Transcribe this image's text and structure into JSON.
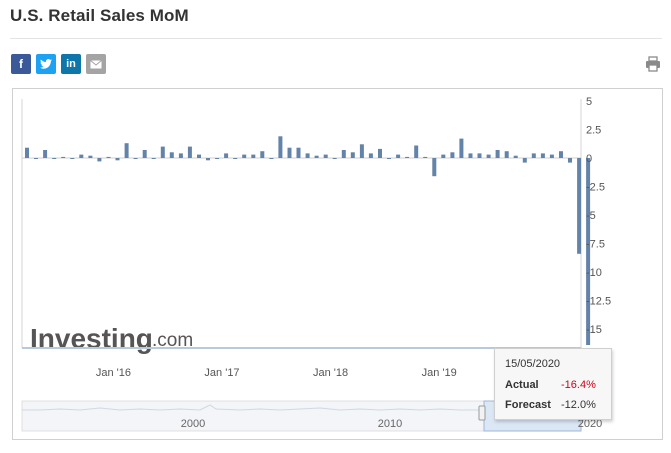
{
  "page": {
    "title": "U.S. Retail Sales MoM"
  },
  "share": {
    "facebook": "f",
    "twitter": "t",
    "linkedin": "in",
    "email": "✉"
  },
  "watermark": {
    "brand": "Investing",
    "suffix": ".com"
  },
  "colors": {
    "bar": "#6483a9",
    "axis": "#b8c9dc",
    "negative": "#d0021b"
  },
  "tooltip": {
    "date": "15/05/2020",
    "actual_label": "Actual",
    "actual_value": "-16.4%",
    "forecast_label": "Forecast",
    "forecast_value": "-12.0%"
  },
  "navigator": {
    "labels": [
      "2000",
      "2010",
      "2020"
    ]
  },
  "chart_data": {
    "type": "bar",
    "title": "U.S. Retail Sales MoM",
    "ylim": [
      -16.4,
      5
    ],
    "yticks": [
      "5",
      "2.5",
      "0",
      "-2.5",
      "-5",
      "-7.5",
      "-10",
      "-12.5",
      "-15"
    ],
    "xtick_labels": [
      "Jan '16",
      "Jan '17",
      "Jan '18",
      "Jan '19"
    ],
    "values": [
      0.9,
      0.0,
      0.7,
      0.0,
      0.1,
      0.0,
      0.3,
      0.2,
      -0.3,
      0.1,
      -0.2,
      1.3,
      0.0,
      0.7,
      0.0,
      1.0,
      0.5,
      0.4,
      1.0,
      0.3,
      -0.2,
      0.0,
      0.4,
      0.0,
      0.3,
      0.3,
      0.6,
      0.0,
      1.9,
      0.9,
      0.9,
      0.4,
      0.2,
      0.3,
      0.0,
      0.7,
      0.5,
      1.2,
      0.4,
      0.8,
      0.0,
      0.3,
      0.1,
      1.1,
      0.1,
      -1.6,
      0.3,
      0.5,
      1.7,
      0.4,
      0.4,
      0.3,
      0.7,
      0.6,
      0.2,
      -0.4,
      0.4,
      0.4,
      0.3,
      0.6,
      -0.4,
      -8.4,
      -16.4
    ]
  }
}
